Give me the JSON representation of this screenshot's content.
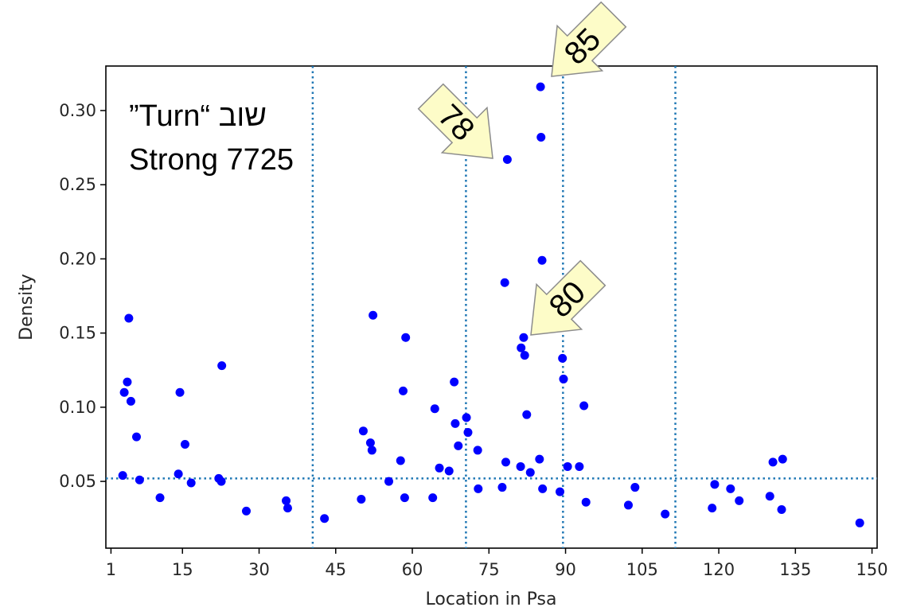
{
  "chart_data": {
    "type": "scatter",
    "title": "",
    "xlabel": "Location in Psa",
    "ylabel": "Density",
    "xlim": [
      0,
      151
    ],
    "ylim": [
      0.005,
      0.33
    ],
    "x_ticks": [
      1,
      15,
      30,
      45,
      60,
      75,
      90,
      105,
      120,
      135,
      150
    ],
    "x_tick_labels": [
      "1",
      "15",
      "30",
      "45",
      "60",
      "75",
      "90",
      "105",
      "120",
      "135",
      "150"
    ],
    "y_ticks": [
      0.05,
      0.1,
      0.15,
      0.2,
      0.25,
      0.3
    ],
    "y_tick_labels": [
      "0.05",
      "0.10",
      "0.15",
      "0.20",
      "0.25",
      "0.30"
    ],
    "reference_lines": {
      "horizontal_y": 0.052,
      "vertical_x": [
        40.5,
        70.5,
        89.5,
        111.5
      ],
      "style": "dotted"
    },
    "point_color": "#0000ff",
    "line_color": "#1f77b4",
    "series": [
      {
        "points": [
          [
            3.3,
            0.054
          ],
          [
            3.6,
            0.11
          ],
          [
            4.2,
            0.117
          ],
          [
            4.5,
            0.16
          ],
          [
            4.9,
            0.104
          ],
          [
            6.0,
            0.08
          ],
          [
            6.6,
            0.051
          ],
          [
            10.6,
            0.039
          ],
          [
            14.2,
            0.055
          ],
          [
            14.5,
            0.11
          ],
          [
            15.5,
            0.075
          ],
          [
            16.7,
            0.049
          ],
          [
            22.1,
            0.052
          ],
          [
            22.6,
            0.05
          ],
          [
            22.7,
            0.128
          ],
          [
            27.5,
            0.03
          ],
          [
            35.3,
            0.037
          ],
          [
            35.6,
            0.032
          ],
          [
            42.8,
            0.025
          ],
          [
            50.0,
            0.038
          ],
          [
            50.4,
            0.084
          ],
          [
            51.8,
            0.076
          ],
          [
            52.1,
            0.071
          ],
          [
            52.3,
            0.162
          ],
          [
            55.4,
            0.05
          ],
          [
            57.7,
            0.064
          ],
          [
            58.2,
            0.111
          ],
          [
            58.5,
            0.039
          ],
          [
            58.7,
            0.147
          ],
          [
            64.0,
            0.039
          ],
          [
            64.4,
            0.099
          ],
          [
            65.3,
            0.059
          ],
          [
            67.2,
            0.057
          ],
          [
            68.2,
            0.117
          ],
          [
            68.4,
            0.089
          ],
          [
            69.0,
            0.074
          ],
          [
            70.6,
            0.093
          ],
          [
            70.9,
            0.083
          ],
          [
            72.8,
            0.071
          ],
          [
            72.9,
            0.045
          ],
          [
            77.6,
            0.046
          ],
          [
            78.1,
            0.184
          ],
          [
            78.3,
            0.063
          ],
          [
            78.6,
            0.267
          ],
          [
            81.2,
            0.06
          ],
          [
            81.3,
            0.14
          ],
          [
            81.8,
            0.147
          ],
          [
            82.0,
            0.135
          ],
          [
            82.4,
            0.095
          ],
          [
            83.1,
            0.056
          ],
          [
            84.9,
            0.065
          ],
          [
            85.1,
            0.316
          ],
          [
            85.2,
            0.282
          ],
          [
            85.4,
            0.199
          ],
          [
            85.5,
            0.045
          ],
          [
            88.9,
            0.043
          ],
          [
            89.4,
            0.133
          ],
          [
            89.6,
            0.119
          ],
          [
            90.4,
            0.06
          ],
          [
            92.7,
            0.06
          ],
          [
            93.6,
            0.101
          ],
          [
            94.0,
            0.036
          ],
          [
            102.3,
            0.034
          ],
          [
            103.6,
            0.046
          ],
          [
            109.5,
            0.028
          ],
          [
            118.7,
            0.032
          ],
          [
            119.2,
            0.048
          ],
          [
            122.3,
            0.045
          ],
          [
            124.0,
            0.037
          ],
          [
            130.0,
            0.04
          ],
          [
            130.6,
            0.063
          ],
          [
            132.3,
            0.031
          ],
          [
            132.5,
            0.065
          ],
          [
            147.6,
            0.022
          ]
        ]
      }
    ]
  },
  "annotations": {
    "word_label": "שוב “Turn”",
    "strong_label": "Strong 7725",
    "callouts": [
      "85",
      "78",
      "80"
    ]
  }
}
